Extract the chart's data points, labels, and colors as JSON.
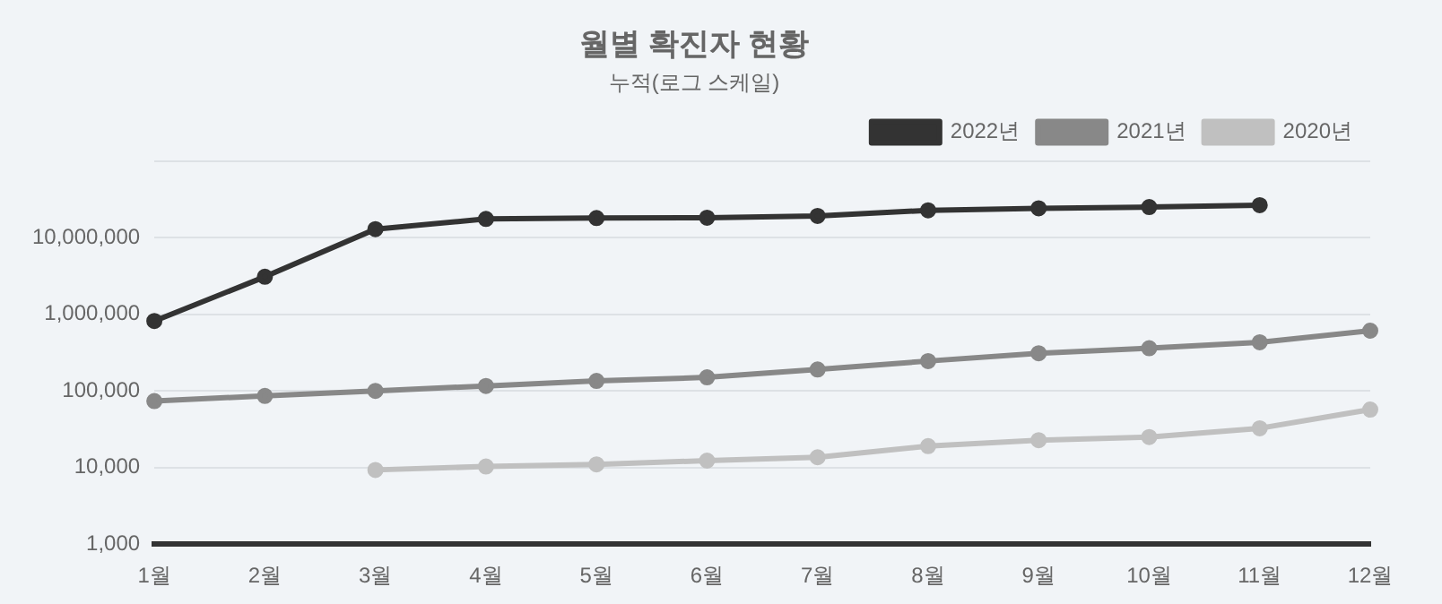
{
  "chart_data": {
    "type": "line",
    "title": "월별 확진자 현황",
    "subtitle": "누적(로그 스케일)",
    "categories": [
      "1월",
      "2월",
      "3월",
      "4월",
      "5월",
      "6월",
      "7월",
      "8월",
      "9월",
      "10월",
      "11월",
      "12월"
    ],
    "series": [
      {
        "name": "2022년",
        "color": "#333333",
        "values": [
          815000,
          3080000,
          12900000,
          17500000,
          18000000,
          18200000,
          19200000,
          22700000,
          24100000,
          25000000,
          26500000,
          null
        ]
      },
      {
        "name": "2021년",
        "color": "#888888",
        "values": [
          73600,
          86000,
          100000,
          116000,
          135000,
          150000,
          190000,
          245000,
          310000,
          360000,
          430000,
          610000
        ]
      },
      {
        "name": "2020년",
        "color": "#c0c0c0",
        "values": [
          null,
          null,
          9300,
          10300,
          11000,
          12300,
          13600,
          19000,
          22700,
          25000,
          32500,
          57000
        ]
      }
    ],
    "log": true,
    "ylim": [
      1000,
      100000000
    ],
    "yticks": [
      {
        "value": 1000,
        "label": "1,000"
      },
      {
        "value": 10000,
        "label": "10,000"
      },
      {
        "value": 100000,
        "label": "100,000"
      },
      {
        "value": 1000000,
        "label": "1,000,000"
      },
      {
        "value": 10000000,
        "label": "10,000,000"
      },
      {
        "value": 100000000,
        "label": null
      }
    ],
    "grid": "y",
    "legend": "top right",
    "marker": "circle",
    "line_style": "solid"
  }
}
